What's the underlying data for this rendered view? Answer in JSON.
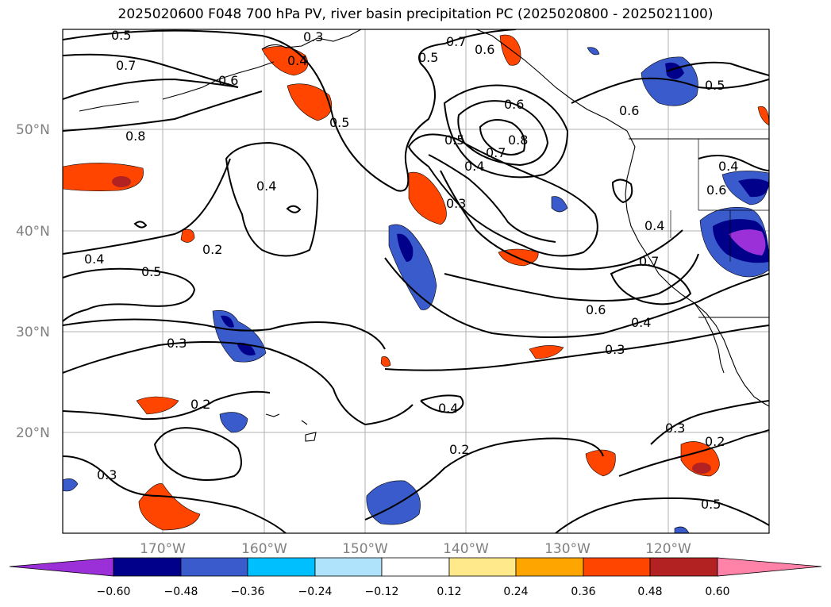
{
  "title": "2025020600 F048 700 hPa PV, river basin precipitation PC (2025020800 - 2025021100)",
  "latitude_labels": [
    "50°N",
    "40°N",
    "30°N",
    "20°N"
  ],
  "longitude_labels": [
    "170°W",
    "160°W",
    "150°W",
    "140°W",
    "130°W",
    "120°W"
  ],
  "colorbar": {
    "tick_labels": [
      "−0.60",
      "−0.48",
      "−0.36",
      "−0.24",
      "−0.12",
      "0.12",
      "0.24",
      "0.36",
      "0.48",
      "0.60"
    ],
    "extend_low_color": "#9b30d9",
    "extend_high_color": "#ff82a9",
    "colors": [
      "#00008b",
      "#3a5bcc",
      "#00bfff",
      "#aee3fb",
      "#ffffff",
      "#ffe98a",
      "#ffa500",
      "#ff4500",
      "#b22222"
    ]
  },
  "contour_labels": [
    "0.5",
    "0.3",
    "0.7",
    "0.6",
    "0.4",
    "0.6",
    "0.7",
    "0.5",
    "0.6",
    "0.5",
    "0.8",
    "0.5",
    "0.6",
    "0.8",
    "0.5",
    "0.4",
    "0.7",
    "0.4",
    "0.3",
    "0.4",
    "0.6",
    "0.4",
    "0.5",
    "0.7",
    "0.4",
    "0.2",
    "0.6",
    "0.4",
    "0.3",
    "0.3",
    "0.4",
    "0.2",
    "0.3",
    "0.2",
    "0.3",
    "0.2",
    "0.5"
  ]
}
